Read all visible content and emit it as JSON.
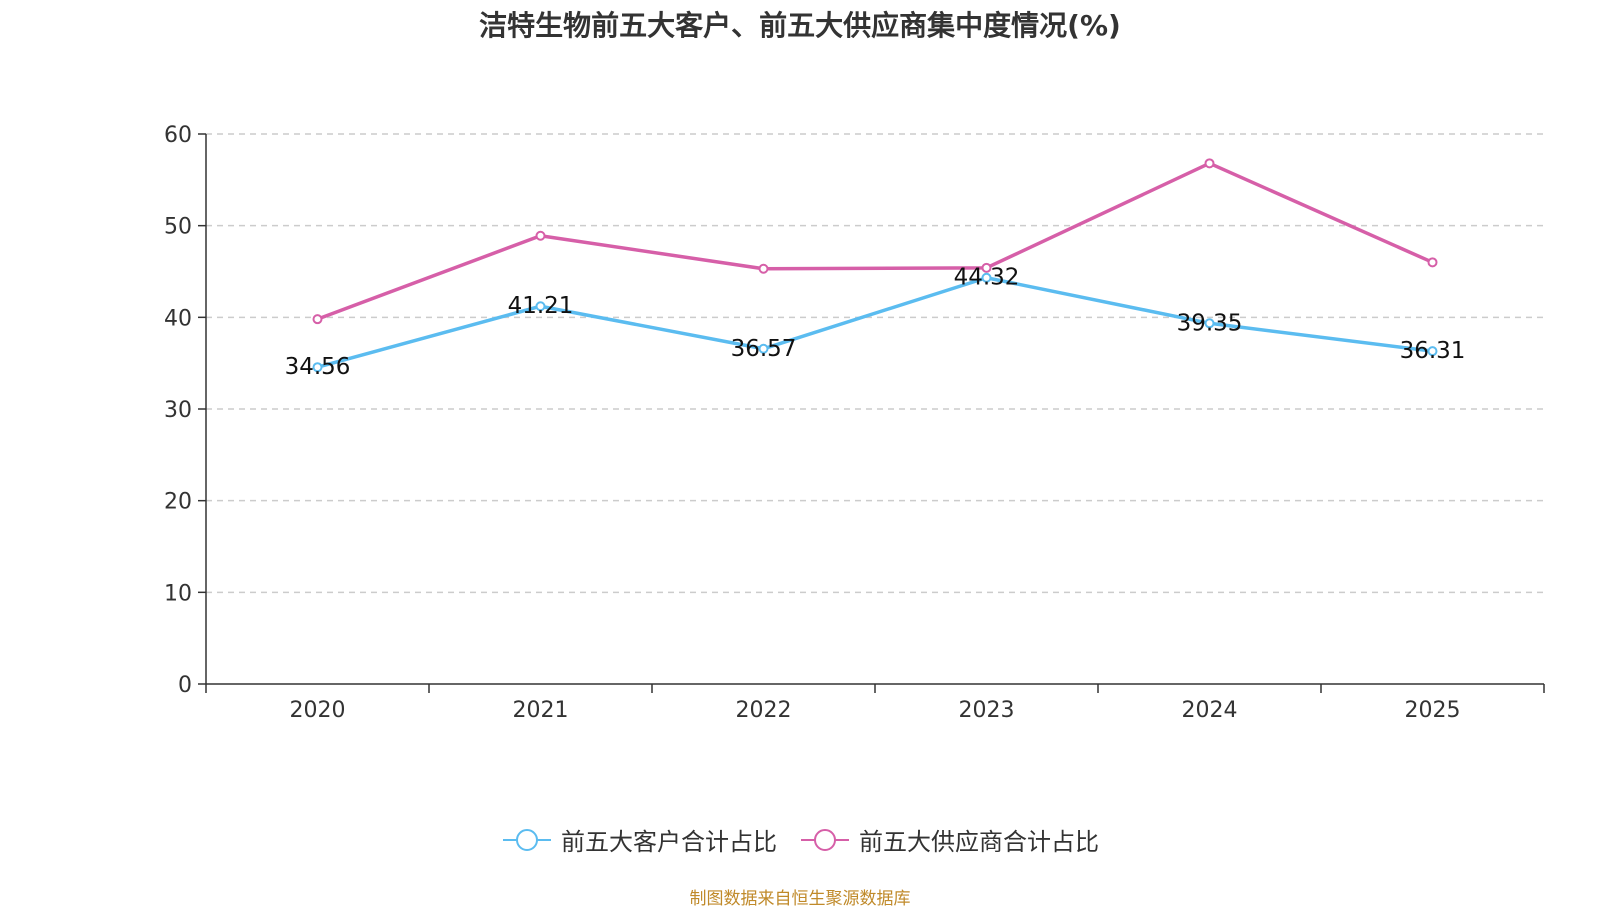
{
  "chart_data": {
    "type": "line",
    "title": "洁特生物前五大客户、前五大供应商集中度情况(%)",
    "categories": [
      "2020",
      "2021",
      "2022",
      "2023",
      "2024",
      "2025"
    ],
    "ylim": [
      0,
      60
    ],
    "yticks": [
      0,
      10,
      20,
      30,
      40,
      50,
      60
    ],
    "grid": true,
    "legend_position": "bottom-center",
    "series": [
      {
        "name": "前五大客户合计占比",
        "color": "#5bbcf0",
        "values": [
          34.56,
          41.21,
          36.57,
          44.32,
          39.35,
          36.31
        ],
        "labels": [
          "34.56",
          "41.21",
          "36.57",
          "44.32",
          "39.35",
          "36.31"
        ]
      },
      {
        "name": "前五大供应商合计占比",
        "color": "#d65fa8",
        "values": [
          39.8,
          48.9,
          45.3,
          45.4,
          56.8,
          46.0
        ]
      }
    ]
  },
  "source": "制图数据来自恒生聚源数据库"
}
